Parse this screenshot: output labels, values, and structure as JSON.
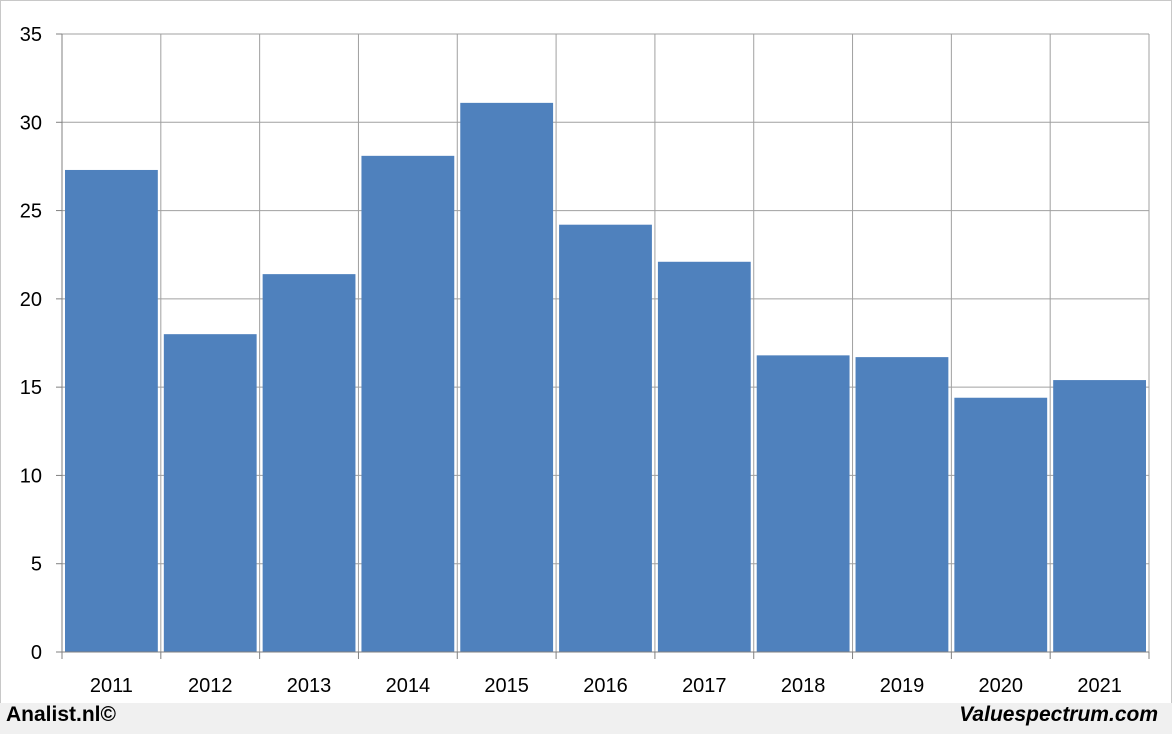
{
  "chart_data": {
    "type": "bar",
    "categories": [
      "2011",
      "2012",
      "2013",
      "2014",
      "2015",
      "2016",
      "2017",
      "2018",
      "2019",
      "2020",
      "2021"
    ],
    "values": [
      27.3,
      18.0,
      21.4,
      28.1,
      31.1,
      24.2,
      22.1,
      16.8,
      16.7,
      14.4,
      15.4
    ],
    "title": "",
    "xlabel": "",
    "ylabel": "",
    "ylim": [
      0,
      35
    ],
    "yticks": [
      "0",
      "5",
      "10",
      "15",
      "20",
      "25",
      "30",
      "35"
    ],
    "grid": true,
    "bar_color": "#4f81bd",
    "grid_color": "#a0a0a0"
  },
  "footer": {
    "left_credit": "Analist.nl©",
    "right_credit": "Valuespectrum.com"
  }
}
